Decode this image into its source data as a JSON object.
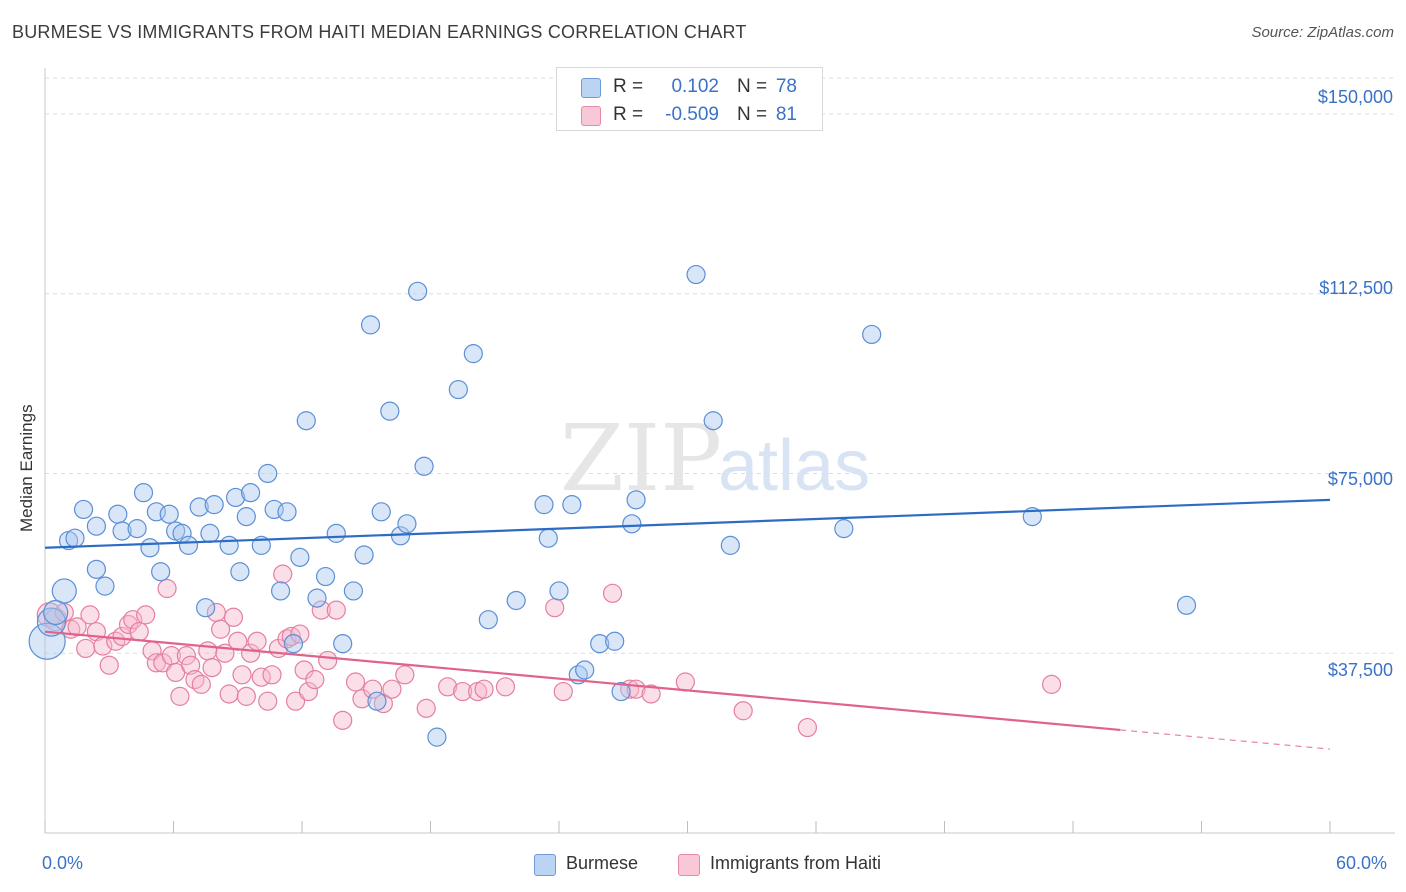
{
  "title": "BURMESE VS IMMIGRANTS FROM HAITI MEDIAN EARNINGS CORRELATION CHART",
  "source": "Source: ZipAtlas.com",
  "watermark": {
    "zip": "ZIP",
    "atlas": "atlas"
  },
  "legend_top": [
    {
      "r_label": "R =",
      "r_value": "0.102",
      "n_label": "N =",
      "n_value": "78"
    },
    {
      "r_label": "R =",
      "r_value": "-0.509",
      "n_label": "N =",
      "n_value": "81"
    }
  ],
  "legend_bottom": [
    "Burmese",
    "Immigrants from Haiti"
  ],
  "colors": {
    "blue_fill": "#a9c8f0",
    "blue_stroke": "#5b8fd6",
    "blue_line": "#2d6cc4",
    "pink_fill": "#f6b9cc",
    "pink_stroke": "#e57fa0",
    "pink_line": "#e0628e",
    "axis_text": "#3a72c8",
    "grid": "#dcdcdc"
  },
  "chart_data": {
    "type": "scatter",
    "title": "BURMESE VS IMMIGRANTS FROM HAITI MEDIAN EARNINGS CORRELATION CHART",
    "xlabel": "",
    "ylabel": "Median Earnings",
    "xlim": [
      0,
      60
    ],
    "ylim": [
      0,
      157500
    ],
    "x_tick_labels": [
      "0.0%",
      "60.0%"
    ],
    "y_ticks": [
      37500,
      75000,
      112500,
      150000
    ],
    "y_tick_labels": [
      "$37,500",
      "$75,000",
      "$112,500",
      "$150,000"
    ],
    "grid": true,
    "legend_position": "top-center",
    "series": [
      {
        "name": "Burmese",
        "r": 0.102,
        "n": 78,
        "trend": {
          "x0": 0,
          "y0": 59500,
          "x1": 60,
          "y1": 69500,
          "dashed_from": null
        },
        "points": [
          [
            0.1,
            40000,
            18
          ],
          [
            0.3,
            44000,
            14
          ],
          [
            0.5,
            46000,
            12
          ],
          [
            0.9,
            50500,
            12
          ],
          [
            1.1,
            61000,
            9
          ],
          [
            1.4,
            61500,
            9
          ],
          [
            1.8,
            67500,
            9
          ],
          [
            2.4,
            64000,
            9
          ],
          [
            2.4,
            55000,
            9
          ],
          [
            2.8,
            51500,
            9
          ],
          [
            3.4,
            66500,
            9
          ],
          [
            3.6,
            63000,
            9
          ],
          [
            4.3,
            63500,
            9
          ],
          [
            4.6,
            71000,
            9
          ],
          [
            4.9,
            59500,
            9
          ],
          [
            5.2,
            67000,
            9
          ],
          [
            5.4,
            54500,
            9
          ],
          [
            5.8,
            66500,
            9
          ],
          [
            6.1,
            63000,
            9
          ],
          [
            6.4,
            62500,
            9
          ],
          [
            6.7,
            60000,
            9
          ],
          [
            7.2,
            68000,
            9
          ],
          [
            7.5,
            47000,
            9
          ],
          [
            7.7,
            62500,
            9
          ],
          [
            7.9,
            68500,
            9
          ],
          [
            8.6,
            60000,
            9
          ],
          [
            8.9,
            70000,
            9
          ],
          [
            9.1,
            54500,
            9
          ],
          [
            9.4,
            66000,
            9
          ],
          [
            9.6,
            71000,
            9
          ],
          [
            10.1,
            60000,
            9
          ],
          [
            10.4,
            75000,
            9
          ],
          [
            10.7,
            67500,
            9
          ],
          [
            11.0,
            50500,
            9
          ],
          [
            11.3,
            67000,
            9
          ],
          [
            11.6,
            39500,
            9
          ],
          [
            11.9,
            57500,
            9
          ],
          [
            12.2,
            86000,
            9
          ],
          [
            12.7,
            49000,
            9
          ],
          [
            13.1,
            53500,
            9
          ],
          [
            13.6,
            62500,
            9
          ],
          [
            13.9,
            39500,
            9
          ],
          [
            14.4,
            50500,
            9
          ],
          [
            14.9,
            58000,
            9
          ],
          [
            15.2,
            106000,
            9
          ],
          [
            15.5,
            27500,
            9
          ],
          [
            15.7,
            67000,
            9
          ],
          [
            16.1,
            88000,
            9
          ],
          [
            16.6,
            62000,
            9
          ],
          [
            16.9,
            64500,
            9
          ],
          [
            17.4,
            113000,
            9
          ],
          [
            17.7,
            76500,
            9
          ],
          [
            18.3,
            20000,
            9
          ],
          [
            19.3,
            92500,
            9
          ],
          [
            20.0,
            100000,
            9
          ],
          [
            20.7,
            44500,
            9
          ],
          [
            22.0,
            48500,
            9
          ],
          [
            23.3,
            68500,
            9
          ],
          [
            23.5,
            61500,
            9
          ],
          [
            24.0,
            50500,
            9
          ],
          [
            24.6,
            68500,
            9
          ],
          [
            24.9,
            33000,
            9
          ],
          [
            25.2,
            34000,
            9
          ],
          [
            25.9,
            39500,
            9
          ],
          [
            26.6,
            40000,
            9
          ],
          [
            26.9,
            29500,
            9
          ],
          [
            27.4,
            64500,
            9
          ],
          [
            27.6,
            69500,
            9
          ],
          [
            30.4,
            116500,
            9
          ],
          [
            31.2,
            86000,
            9
          ],
          [
            32.0,
            60000,
            9
          ],
          [
            37.3,
            63500,
            9
          ],
          [
            38.6,
            104000,
            9
          ],
          [
            46.1,
            66000,
            9
          ],
          [
            53.3,
            47500,
            9
          ]
        ]
      },
      {
        "name": "Immigrants from Haiti",
        "r": -0.509,
        "n": 81,
        "trend": {
          "x0": 0,
          "y0": 42000,
          "x1": 60,
          "y1": 17500,
          "dashed_from": 50.2
        },
        "points": [
          [
            0.2,
            45500,
            12
          ],
          [
            0.5,
            44500,
            11
          ],
          [
            0.9,
            46000,
            9
          ],
          [
            1.2,
            42500,
            9
          ],
          [
            1.5,
            43000,
            9
          ],
          [
            1.9,
            38500,
            9
          ],
          [
            2.1,
            45500,
            9
          ],
          [
            2.4,
            42000,
            9
          ],
          [
            2.7,
            39000,
            9
          ],
          [
            3.0,
            35000,
            9
          ],
          [
            3.3,
            40000,
            9
          ],
          [
            3.6,
            41000,
            9
          ],
          [
            3.9,
            43500,
            9
          ],
          [
            4.1,
            44500,
            9
          ],
          [
            4.4,
            42000,
            9
          ],
          [
            4.7,
            45500,
            9
          ],
          [
            5.0,
            38000,
            9
          ],
          [
            5.2,
            35500,
            9
          ],
          [
            5.5,
            35500,
            9
          ],
          [
            5.7,
            51000,
            9
          ],
          [
            5.9,
            37000,
            9
          ],
          [
            6.1,
            33500,
            9
          ],
          [
            6.3,
            28500,
            9
          ],
          [
            6.6,
            37000,
            9
          ],
          [
            6.8,
            35000,
            9
          ],
          [
            7.0,
            32000,
            9
          ],
          [
            7.3,
            31000,
            9
          ],
          [
            7.6,
            38000,
            9
          ],
          [
            7.8,
            34500,
            9
          ],
          [
            8.0,
            46000,
            9
          ],
          [
            8.2,
            42500,
            9
          ],
          [
            8.4,
            37500,
            9
          ],
          [
            8.6,
            29000,
            9
          ],
          [
            8.8,
            45000,
            9
          ],
          [
            9.0,
            40000,
            9
          ],
          [
            9.2,
            33000,
            9
          ],
          [
            9.4,
            28500,
            9
          ],
          [
            9.6,
            37500,
            9
          ],
          [
            9.9,
            40000,
            9
          ],
          [
            10.1,
            32500,
            9
          ],
          [
            10.4,
            27500,
            9
          ],
          [
            10.6,
            33000,
            9
          ],
          [
            10.9,
            38500,
            9
          ],
          [
            11.1,
            54000,
            9
          ],
          [
            11.3,
            40500,
            9
          ],
          [
            11.5,
            41000,
            9
          ],
          [
            11.7,
            27500,
            9
          ],
          [
            11.9,
            41500,
            9
          ],
          [
            12.1,
            34000,
            9
          ],
          [
            12.3,
            29500,
            9
          ],
          [
            12.6,
            32000,
            9
          ],
          [
            12.9,
            46500,
            9
          ],
          [
            13.2,
            36000,
            9
          ],
          [
            13.6,
            46500,
            9
          ],
          [
            13.9,
            23500,
            9
          ],
          [
            14.5,
            31500,
            9
          ],
          [
            14.8,
            28000,
            9
          ],
          [
            15.3,
            30000,
            9
          ],
          [
            15.8,
            27000,
            9
          ],
          [
            16.2,
            30000,
            9
          ],
          [
            16.8,
            33000,
            9
          ],
          [
            17.8,
            26000,
            9
          ],
          [
            18.8,
            30500,
            9
          ],
          [
            19.5,
            29500,
            9
          ],
          [
            20.2,
            29500,
            9
          ],
          [
            20.5,
            30000,
            9
          ],
          [
            21.5,
            30500,
            9
          ],
          [
            23.8,
            47000,
            9
          ],
          [
            24.2,
            29500,
            9
          ],
          [
            26.5,
            50000,
            9
          ],
          [
            27.3,
            30000,
            9
          ],
          [
            27.6,
            30000,
            9
          ],
          [
            28.3,
            29000,
            9
          ],
          [
            29.9,
            31500,
            9
          ],
          [
            32.6,
            25500,
            9
          ],
          [
            35.6,
            22000,
            9
          ],
          [
            47.0,
            31000,
            9
          ]
        ]
      }
    ]
  }
}
